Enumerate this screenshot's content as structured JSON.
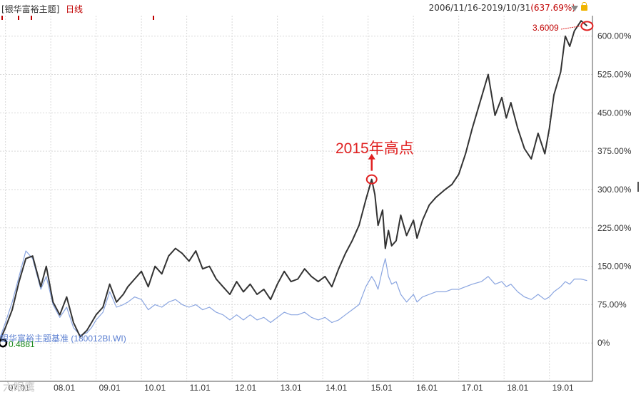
{
  "header": {
    "title": "[银华富裕主题]",
    "period": "日线",
    "range": "2006/11/16-2019/10/31",
    "range_pct": "(637.69%)"
  },
  "annotations": {
    "peak_text": "2015年高点",
    "last_value": "3.6009",
    "benchmark_label": "银华富裕主题基准 (180012BI.WI)",
    "low_value": "0.4881"
  },
  "watermark": "六眼鹰",
  "colors": {
    "fund": "#333333",
    "benchmark": "#8aa5e0",
    "highlight": "#e02020"
  },
  "icons": [
    "dropdown-triangle-icon",
    "lock-icon"
  ],
  "chart_data": {
    "type": "line",
    "y_unit": "%",
    "y_ticks": [
      "600.00%",
      "525.00%",
      "450.00%",
      "375.00%",
      "300.00%",
      "225.00%",
      "150.00%",
      "75.00%",
      "0%"
    ],
    "y_tick_values": [
      600,
      525,
      450,
      375,
      300,
      225,
      150,
      75,
      0
    ],
    "ylim": [
      -75,
      640
    ],
    "x_ticks": [
      "07.01",
      "08.01",
      "09.01",
      "10.01",
      "11.01",
      "12.01",
      "13.01",
      "14.01",
      "15.01",
      "16.01",
      "17.01",
      "18.01",
      "19.01"
    ],
    "x_tick_values": [
      2007.0,
      2008.0,
      2009.0,
      2010.0,
      2011.0,
      2012.0,
      2013.0,
      2014.0,
      2015.0,
      2016.0,
      2017.0,
      2018.0,
      2019.0
    ],
    "xlim": [
      2006.88,
      2019.95
    ],
    "grid": true,
    "series": [
      {
        "name": "银华富裕主题",
        "x": [
          2006.88,
          2007.0,
          2007.15,
          2007.3,
          2007.45,
          2007.6,
          2007.78,
          2007.9,
          2008.05,
          2008.2,
          2008.35,
          2008.5,
          2008.65,
          2008.8,
          2008.9,
          2009.0,
          2009.15,
          2009.3,
          2009.45,
          2009.6,
          2009.7,
          2009.85,
          2010.0,
          2010.15,
          2010.3,
          2010.45,
          2010.6,
          2010.75,
          2010.9,
          2011.05,
          2011.2,
          2011.35,
          2011.5,
          2011.65,
          2011.8,
          2011.95,
          2012.1,
          2012.25,
          2012.4,
          2012.55,
          2012.7,
          2012.85,
          2013.0,
          2013.15,
          2013.3,
          2013.45,
          2013.6,
          2013.75,
          2013.9,
          2014.05,
          2014.2,
          2014.35,
          2014.5,
          2014.65,
          2014.8,
          2014.95,
          2015.08,
          2015.15,
          2015.22,
          2015.32,
          2015.38,
          2015.45,
          2015.52,
          2015.62,
          2015.72,
          2015.85,
          2016.0,
          2016.08,
          2016.2,
          2016.35,
          2016.5,
          2016.7,
          2016.85,
          2017.0,
          2017.15,
          2017.3,
          2017.5,
          2017.65,
          2017.8,
          2017.95,
          2018.05,
          2018.15,
          2018.3,
          2018.45,
          2018.6,
          2018.75,
          2018.9,
          2019.0,
          2019.1,
          2019.25,
          2019.35,
          2019.45,
          2019.55,
          2019.7,
          2019.83
        ],
        "y": [
          5,
          30,
          65,
          120,
          165,
          170,
          110,
          150,
          80,
          55,
          90,
          40,
          12,
          25,
          40,
          55,
          70,
          115,
          80,
          95,
          110,
          125,
          140,
          110,
          150,
          135,
          170,
          185,
          175,
          160,
          180,
          145,
          150,
          125,
          110,
          95,
          120,
          100,
          115,
          95,
          105,
          85,
          115,
          140,
          120,
          125,
          145,
          130,
          120,
          130,
          110,
          145,
          175,
          200,
          230,
          280,
          320,
          290,
          230,
          260,
          185,
          220,
          190,
          200,
          250,
          210,
          240,
          205,
          240,
          270,
          285,
          300,
          310,
          330,
          370,
          420,
          480,
          525,
          445,
          480,
          440,
          470,
          420,
          380,
          360,
          410,
          370,
          420,
          485,
          530,
          600,
          580,
          610,
          630,
          620
        ]
      },
      {
        "name": "银华富裕主题基准 (180012BI.WI)",
        "x": [
          2006.88,
          2007.0,
          2007.15,
          2007.3,
          2007.45,
          2007.6,
          2007.78,
          2007.9,
          2008.05,
          2008.2,
          2008.35,
          2008.5,
          2008.65,
          2008.8,
          2008.9,
          2009.0,
          2009.15,
          2009.3,
          2009.45,
          2009.6,
          2009.7,
          2009.85,
          2010.0,
          2010.15,
          2010.3,
          2010.45,
          2010.6,
          2010.75,
          2010.9,
          2011.05,
          2011.2,
          2011.35,
          2011.5,
          2011.65,
          2011.8,
          2011.95,
          2012.1,
          2012.25,
          2012.4,
          2012.55,
          2012.7,
          2012.85,
          2013.0,
          2013.15,
          2013.3,
          2013.45,
          2013.6,
          2013.75,
          2013.9,
          2014.05,
          2014.2,
          2014.35,
          2014.5,
          2014.65,
          2014.8,
          2014.95,
          2015.08,
          2015.15,
          2015.22,
          2015.32,
          2015.38,
          2015.45,
          2015.52,
          2015.62,
          2015.72,
          2015.85,
          2016.0,
          2016.08,
          2016.2,
          2016.35,
          2016.5,
          2016.7,
          2016.85,
          2017.0,
          2017.15,
          2017.3,
          2017.5,
          2017.65,
          2017.8,
          2017.95,
          2018.05,
          2018.15,
          2018.3,
          2018.45,
          2018.6,
          2018.75,
          2018.9,
          2019.0,
          2019.1,
          2019.25,
          2019.35,
          2019.45,
          2019.55,
          2019.7,
          2019.83
        ],
        "y": [
          10,
          40,
          80,
          130,
          180,
          165,
          105,
          130,
          75,
          50,
          70,
          30,
          15,
          20,
          30,
          45,
          60,
          100,
          70,
          75,
          80,
          90,
          85,
          65,
          75,
          70,
          80,
          85,
          75,
          70,
          75,
          65,
          70,
          60,
          55,
          45,
          55,
          45,
          55,
          45,
          50,
          40,
          50,
          60,
          55,
          55,
          60,
          50,
          45,
          50,
          40,
          45,
          55,
          65,
          75,
          110,
          130,
          120,
          105,
          145,
          165,
          130,
          115,
          120,
          95,
          80,
          95,
          80,
          90,
          95,
          100,
          100,
          105,
          105,
          110,
          115,
          120,
          130,
          115,
          120,
          110,
          115,
          100,
          90,
          85,
          95,
          85,
          90,
          100,
          110,
          120,
          115,
          125,
          125,
          122
        ]
      }
    ]
  }
}
